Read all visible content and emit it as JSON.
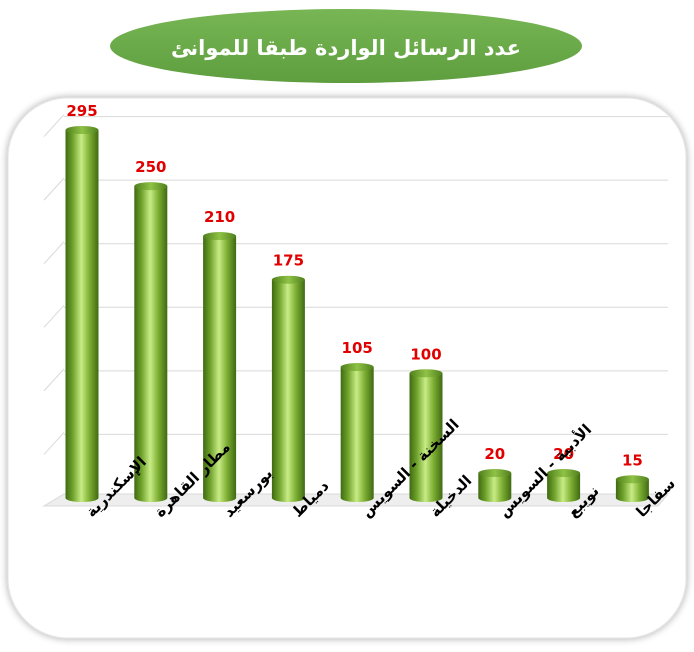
{
  "chart_data": {
    "type": "bar",
    "title": "عدد الرسائل الواردة طبقا للموانئ",
    "categories": [
      "الإسكندرية",
      "مطار القاهرة",
      "بورسعيد",
      "دمياط",
      "السخنة - السويس",
      "الدخيلة",
      "الأدبية - السويس",
      "نويبع",
      "سفاجا"
    ],
    "values": [
      295,
      250,
      210,
      175,
      105,
      100,
      20,
      20,
      15
    ],
    "ylim": [
      0,
      300
    ],
    "grid": true,
    "colors": {
      "bar_dark": "#4f7f1c",
      "bar_mid": "#7fb034",
      "bar_light": "#c4e882",
      "value_label": "#e00000",
      "category_label": "#000000",
      "title_pill": "#6aaa48",
      "title_text": "#ffffff",
      "gridline": "#d9d9d9"
    }
  }
}
